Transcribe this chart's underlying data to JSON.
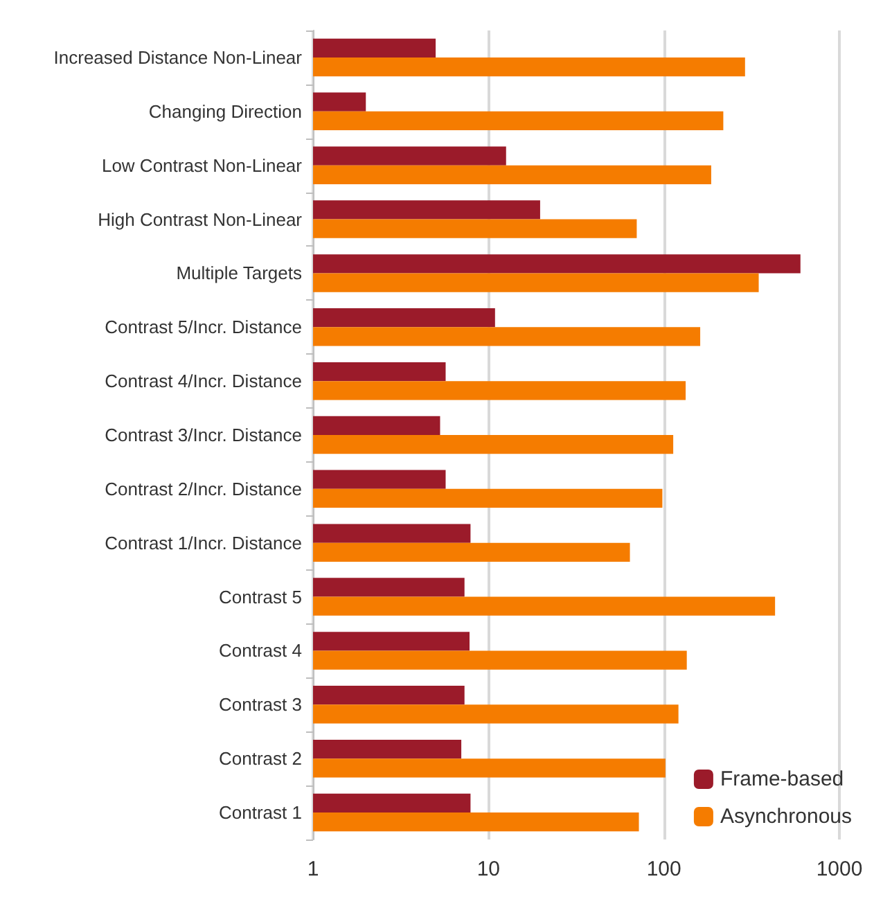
{
  "chart_data": {
    "type": "bar",
    "orientation": "horizontal",
    "log": "x",
    "categories": [
      "Increased Distance Non-Linear",
      "Changing Direction",
      "Low Contrast Non-Linear",
      "High Contrast Non-Linear",
      "Multiple Targets",
      "Contrast 5/Incr. Distance",
      "Contrast 4/Incr. Distance",
      "Contrast 3/Incr. Distance",
      "Contrast 2/Incr. Distance",
      "Contrast 1/Incr. Distance",
      "Contrast 5",
      "Contrast 4",
      "Contrast 3",
      "Contrast 2",
      "Contrast 1"
    ],
    "series": [
      {
        "name": "Frame-based",
        "color": "#9b1b2a",
        "values": [
          5.0,
          2.0,
          12.6,
          19.7,
          600,
          10.9,
          5.7,
          5.3,
          5.7,
          7.9,
          7.3,
          7.8,
          7.3,
          7.0,
          7.9
        ]
      },
      {
        "name": "Asynchronous",
        "color": "#f57c00",
        "values": [
          290,
          218,
          186,
          70,
          347,
          161,
          133,
          113,
          98,
          64,
          430,
          135,
          121,
          102,
          72
        ]
      }
    ],
    "xlim": [
      1,
      1000
    ],
    "xticks": [
      1,
      10,
      100,
      1000
    ],
    "grid": "x",
    "legend": "bottom right"
  }
}
